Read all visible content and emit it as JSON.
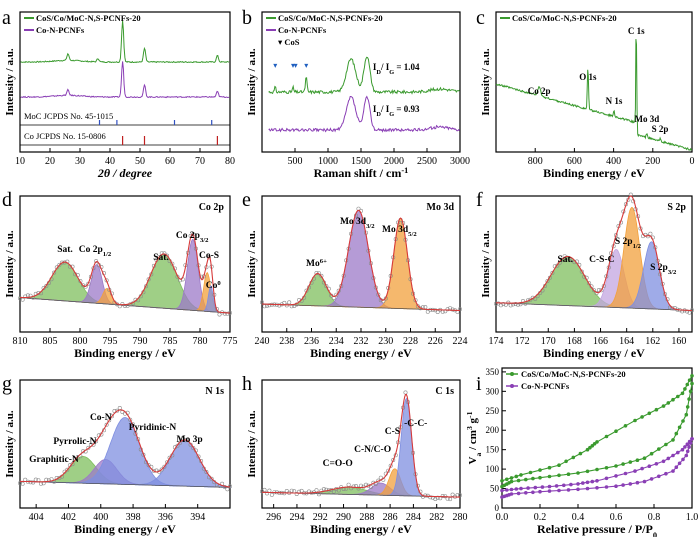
{
  "colors": {
    "green": "#3a9a2e",
    "purple": "#8a3fb5",
    "fit_red": "#d63a3a",
    "fill_green": "#7fbf5e",
    "fill_purple": "#9c79c8",
    "fill_orange": "#f2a03c",
    "fill_blue": "#7f8fe0",
    "fill_lav": "#c3a6e0",
    "raw_grey": "#8a8a8a"
  },
  "chart_data": [
    {
      "panel": "a",
      "type": "line",
      "xlabel": "2θ / degree",
      "ylabel": "Intensity / a.u.",
      "xlim": [
        10,
        80
      ],
      "xticks": [
        "10",
        "20",
        "30",
        "40",
        "50",
        "60",
        "70",
        "80"
      ],
      "series": [
        {
          "name": "CoS/Co/MoC-N,S-PCNFs-20",
          "color": "green",
          "peaks": [
            [
              26,
              0.12
            ],
            [
              36,
              0.06
            ],
            [
              44.2,
              0.75
            ],
            [
              51.5,
              0.25
            ],
            [
              75.8,
              0.12
            ]
          ]
        },
        {
          "name": "Co-N-PCNFs",
          "color": "purple",
          "peaks": [
            [
              26,
              0.1
            ],
            [
              44.2,
              0.65
            ],
            [
              51.5,
              0.22
            ],
            [
              75.8,
              0.1
            ]
          ]
        }
      ],
      "references": [
        {
          "label": "MoC JCPDS No. 45-1015",
          "lines": [
            36.5,
            42.3,
            61.5,
            73.9
          ]
        },
        {
          "label": "Co JCPDS No. 15-0806",
          "lines": [
            44.2,
            51.5,
            75.8
          ]
        }
      ]
    },
    {
      "panel": "b",
      "type": "line",
      "xlabel": "Raman shift / cm",
      "xlabel_sup": "-1",
      "ylabel": "Intensity / a.u.",
      "xlim": [
        0,
        3000
      ],
      "xticks": [
        "500",
        "1000",
        "1500",
        "2000",
        "2500",
        "3000"
      ],
      "legend_marker_label": "CoS",
      "cos_markers": [
        200,
        470,
        510,
        670
      ],
      "ratios": [
        {
          "series": "CoS/Co/MoC-N,S-PCNFs-20",
          "base": "I",
          "sub1": "D",
          "sep": "/ I",
          "sub2": "G",
          "value": "= 1.04"
        },
        {
          "series": "Co-N-PCNFs",
          "base": "I",
          "sub1": "D",
          "sep": "/ I",
          "sub2": "G",
          "value": "= 0.93"
        }
      ],
      "series": [
        {
          "name": "CoS/Co/MoC-N,S-PCNFs-20",
          "color": "green"
        },
        {
          "name": "Co-N-PCNFs",
          "color": "purple"
        }
      ]
    },
    {
      "panel": "c",
      "type": "line",
      "xlabel": "Binding energy / eV",
      "ylabel": "Intensity / a.u.",
      "xlim": [
        1000,
        0
      ],
      "xticks": [
        "800",
        "600",
        "400",
        "200",
        "0"
      ],
      "series": [
        {
          "name": "CoS/Co/MoC-N,S-PCNFs-20",
          "color": "green"
        }
      ],
      "peak_labels": [
        {
          "label": "Co 2p",
          "x": 780
        },
        {
          "label": "O 1s",
          "x": 531
        },
        {
          "label": "N 1s",
          "x": 398
        },
        {
          "label": "C 1s",
          "x": 284.6
        },
        {
          "label": "Mo 3d",
          "x": 230
        },
        {
          "label": "S 2p",
          "x": 163
        }
      ]
    },
    {
      "panel": "d",
      "type": "area",
      "title": "Co 2p",
      "xlabel": "Binding energy / eV",
      "ylabel": "Intensity / a.u.",
      "xlim": [
        810,
        775
      ],
      "xticks": [
        "810",
        "805",
        "800",
        "795",
        "790",
        "785",
        "780",
        "775"
      ],
      "components": [
        {
          "center": 802.5,
          "height": 0.3,
          "width": 2.2,
          "color": "fill_green"
        },
        {
          "center": 797.2,
          "height": 0.3,
          "width": 0.9,
          "color": "fill_purple"
        },
        {
          "center": 795.5,
          "height": 0.12,
          "width": 0.7,
          "color": "fill_orange"
        },
        {
          "center": 786.0,
          "height": 0.42,
          "width": 2.2,
          "color": "fill_green"
        },
        {
          "center": 781.2,
          "height": 0.55,
          "width": 0.9,
          "color": "fill_purple"
        },
        {
          "center": 778.8,
          "height": 0.3,
          "width": 0.6,
          "color": "fill_orange"
        },
        {
          "center": 778.2,
          "height": 0.2,
          "width": 0.4,
          "color": "fill_blue"
        }
      ],
      "labels": [
        {
          "text": "Sat.",
          "x": 802.5
        },
        {
          "text": "Co 2p",
          "sub": "1/2",
          "x": 797.5
        },
        {
          "text": "Sat.",
          "x": 786.5
        },
        {
          "text": "Co 2p",
          "sub": "3/2",
          "x": 781.3
        },
        {
          "text": "Co-S",
          "x": 778.5
        },
        {
          "text": "Co",
          "sup": "0",
          "x": 777.8
        }
      ]
    },
    {
      "panel": "e",
      "type": "area",
      "title": "Mo 3d",
      "xlabel": "Binding energy / eV",
      "ylabel": "Intensity / a.u.",
      "xlim": [
        240,
        224
      ],
      "xticks": [
        "240",
        "238",
        "236",
        "234",
        "232",
        "230",
        "228",
        "226",
        "224"
      ],
      "components": [
        {
          "center": 235.5,
          "height": 0.25,
          "width": 0.7,
          "color": "fill_green"
        },
        {
          "center": 232.2,
          "height": 0.75,
          "width": 0.8,
          "color": "fill_purple"
        },
        {
          "center": 228.8,
          "height": 0.7,
          "width": 0.55,
          "color": "fill_orange"
        }
      ],
      "labels": [
        {
          "text": "Mo",
          "sup": "6+",
          "x": 235.6
        },
        {
          "text": "Mo 3d",
          "sub": "3/2",
          "x": 232.3
        },
        {
          "text": "Mo 3d",
          "sub": "5/2",
          "x": 228.9
        }
      ]
    },
    {
      "panel": "f",
      "type": "area",
      "title": "S 2p",
      "xlabel": "Binding energy / eV",
      "ylabel": "Intensity / a.u.",
      "xlim": [
        174,
        159
      ],
      "xticks": [
        "174",
        "172",
        "170",
        "168",
        "166",
        "164",
        "162",
        "160"
      ],
      "components": [
        {
          "center": 168.5,
          "height": 0.38,
          "width": 1.3,
          "color": "fill_green"
        },
        {
          "center": 164.8,
          "height": 0.45,
          "width": 0.6,
          "color": "fill_lav"
        },
        {
          "center": 163.6,
          "height": 0.78,
          "width": 0.6,
          "color": "fill_orange"
        },
        {
          "center": 162.1,
          "height": 0.52,
          "width": 0.6,
          "color": "fill_blue"
        }
      ],
      "labels": [
        {
          "text": "Sat.",
          "x": 168.7
        },
        {
          "text": "C-S-C",
          "x": 165.9
        },
        {
          "text": "S 2p",
          "sub": "1/2",
          "x": 163.9
        },
        {
          "text": "S 2p",
          "sub": "3/2",
          "x": 161.2
        }
      ]
    },
    {
      "panel": "g",
      "type": "area",
      "title": "N 1s",
      "xlabel": "Binding energy / eV",
      "ylabel": "Intensity / a.u.",
      "xlim": [
        405,
        392
      ],
      "xticks": [
        "404",
        "402",
        "400",
        "398",
        "396",
        "394"
      ],
      "components": [
        {
          "center": 401.1,
          "height": 0.22,
          "width": 0.8,
          "color": "fill_green"
        },
        {
          "center": 399.7,
          "height": 0.2,
          "width": 0.7,
          "color": "fill_purple"
        },
        {
          "center": 398.5,
          "height": 0.55,
          "width": 0.9,
          "color": "fill_blue"
        },
        {
          "center": 394.8,
          "height": 0.38,
          "width": 0.9,
          "color": "fill_blue"
        }
      ],
      "labels": [
        {
          "text": "Graphitic-N",
          "x": 402.9
        },
        {
          "text": "Pyrrolic-N",
          "x": 401.6
        },
        {
          "text": "Co-N",
          "x": 400.0
        },
        {
          "text": "Pyridinic-N",
          "x": 396.8
        },
        {
          "text": "Mo 3p",
          "x": 394.5
        }
      ]
    },
    {
      "panel": "h",
      "type": "area",
      "title": "C 1s",
      "xlabel": "Binding energy / eV",
      "ylabel": "Intensity / a.u.",
      "xlim": [
        297,
        280
      ],
      "xticks": [
        "296",
        "294",
        "292",
        "290",
        "288",
        "286",
        "284",
        "282",
        "280"
      ],
      "components": [
        {
          "center": 289.5,
          "height": 0.06,
          "width": 1.5,
          "color": "fill_green"
        },
        {
          "center": 286.8,
          "height": 0.1,
          "width": 0.8,
          "color": "fill_purple"
        },
        {
          "center": 285.6,
          "height": 0.22,
          "width": 0.5,
          "color": "fill_orange"
        },
        {
          "center": 284.6,
          "height": 0.8,
          "width": 0.45,
          "color": "fill_blue"
        }
      ],
      "labels": [
        {
          "text": "C=O-O",
          "x": 290.5
        },
        {
          "text": "C-N/C-O",
          "x": 287.5
        },
        {
          "text": "C-S",
          "x": 285.8
        },
        {
          "text": "-C-C-",
          "x": 283.8
        }
      ]
    },
    {
      "panel": "i",
      "type": "line",
      "xlabel": "Relative pressure / P/P",
      "xlabel_sub": "0",
      "ylabel": "V",
      "ylabel_sub": "a",
      "ylabel_rest": " / cm",
      "ylabel_sup": "3",
      "ylabel_tail": " g",
      "ylabel_sup2": "-1",
      "xlim": [
        0,
        1
      ],
      "ylim": [
        0,
        360
      ],
      "xticks": [
        "0.0",
        "0.2",
        "0.4",
        "0.6",
        "0.8",
        "1.0"
      ],
      "yticks": [
        "0",
        "50",
        "100",
        "150",
        "200",
        "250",
        "300",
        "350"
      ],
      "series": [
        {
          "name": "CoS/Co/MoC-N,S-PCNFs-20",
          "color": "green",
          "adsorption": [
            [
              0.0,
              55
            ],
            [
              0.05,
              68
            ],
            [
              0.2,
              78
            ],
            [
              0.4,
              90
            ],
            [
              0.6,
              108
            ],
            [
              0.75,
              128
            ],
            [
              0.9,
              175
            ],
            [
              0.97,
              240
            ],
            [
              1.0,
              320
            ]
          ],
          "desorption": [
            [
              1.0,
              340
            ],
            [
              0.95,
              295
            ],
            [
              0.85,
              262
            ],
            [
              0.7,
              225
            ],
            [
              0.5,
              170
            ],
            [
              0.45,
              150
            ],
            [
              0.3,
              110
            ],
            [
              0.1,
              85
            ],
            [
              0.0,
              70
            ]
          ]
        },
        {
          "name": "Co-N-PCNFs",
          "color": "purple",
          "adsorption": [
            [
              0.0,
              28
            ],
            [
              0.05,
              36
            ],
            [
              0.2,
              42
            ],
            [
              0.4,
              48
            ],
            [
              0.6,
              56
            ],
            [
              0.75,
              68
            ],
            [
              0.9,
              95
            ],
            [
              0.97,
              135
            ],
            [
              1.0,
              178
            ]
          ],
          "desorption": [
            [
              1.0,
              178
            ],
            [
              0.95,
              150
            ],
            [
              0.85,
              120
            ],
            [
              0.7,
              95
            ],
            [
              0.5,
              70
            ],
            [
              0.4,
              62
            ],
            [
              0.25,
              55
            ],
            [
              0.1,
              50
            ],
            [
              0.0,
              45
            ]
          ]
        }
      ]
    }
  ]
}
